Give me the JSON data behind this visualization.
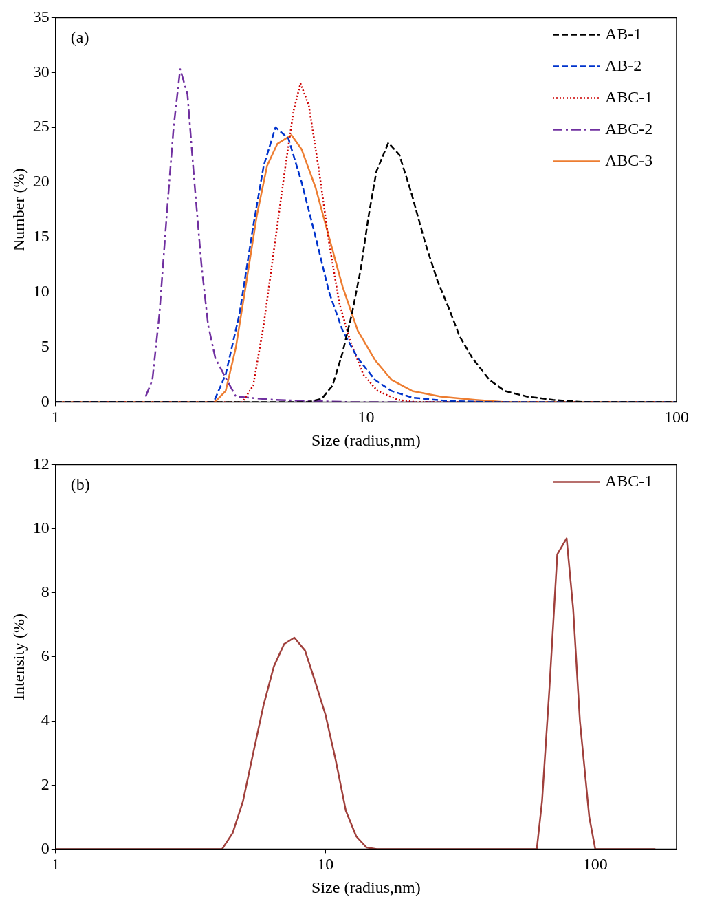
{
  "chart_data": [
    {
      "type": "line",
      "xlabel": "Size (radius,nm)",
      "ylabel": "Number (%)",
      "log": "x",
      "xlim": [
        1,
        100
      ],
      "xticks": [
        1,
        10,
        100
      ],
      "ylim": [
        0,
        35
      ],
      "yticks": [
        0,
        5,
        10,
        15,
        20,
        25,
        30,
        35
      ],
      "grid": false,
      "legend": "top right",
      "marker": "none",
      "annotations": [
        "(a)"
      ],
      "series": [
        {
          "name": "AB-1",
          "color": "#000000",
          "line_style": "dashed",
          "x": [
            1,
            3,
            6.5,
            7.2,
            7.8,
            8.4,
            9.0,
            9.6,
            10.2,
            10.8,
            11.8,
            12.8,
            14,
            15.5,
            17,
            18.5,
            20,
            22,
            25,
            28,
            33,
            40,
            50,
            100
          ],
          "values": [
            0,
            0,
            0,
            0.3,
            1.5,
            4.5,
            8,
            12,
            17,
            21,
            23.6,
            22.5,
            19,
            14.5,
            11,
            8.5,
            6,
            4,
            2,
            1,
            0.5,
            0.2,
            0,
            0
          ]
        },
        {
          "name": "AB-2",
          "color": "#0033cc",
          "line_style": "dashed",
          "x": [
            1,
            3.23,
            3.53,
            3.91,
            4.33,
            4.68,
            5.11,
            5.62,
            6.2,
            6.88,
            7.6,
            8.4,
            9.4,
            10.7,
            12.1,
            14.1,
            18.3,
            25,
            100
          ],
          "values": [
            0,
            0,
            2.5,
            8,
            16,
            21.5,
            25,
            24,
            20,
            15,
            10,
            6.5,
            4,
            2,
            1,
            0.4,
            0.1,
            0,
            0
          ]
        },
        {
          "name": "ABC-1",
          "color": "#cc0000",
          "line_style": "dotted",
          "x": [
            1,
            4.0,
            4.33,
            4.68,
            5.06,
            5.47,
            5.84,
            6.15,
            6.54,
            7.06,
            7.6,
            8.2,
            8.9,
            9.8,
            10.9,
            12.7,
            14.5,
            100
          ],
          "values": [
            0,
            0,
            1.5,
            7,
            14,
            21,
            26.5,
            29,
            27,
            21,
            14.5,
            9,
            5.5,
            2.5,
            1,
            0.2,
            0,
            0
          ]
        },
        {
          "name": "ABC-2",
          "color": "#7030a0",
          "line_style": "dashdot",
          "x": [
            1.95,
            2.05,
            2.16,
            2.28,
            2.4,
            2.52,
            2.66,
            2.8,
            2.95,
            3.1,
            3.27,
            3.53,
            3.81,
            5.06,
            6.5,
            9,
            20
          ],
          "values": [
            0.5,
            2,
            8,
            17,
            25,
            30.3,
            28,
            20,
            12.5,
            7,
            4,
            2.2,
            0.5,
            0.2,
            0.1,
            0,
            0
          ]
        },
        {
          "name": "ABC-3",
          "color": "#ed7d31",
          "line_style": "solid",
          "x": [
            1,
            3.26,
            3.53,
            3.81,
            4.12,
            4.45,
            4.8,
            5.18,
            5.75,
            6.2,
            6.88,
            7.6,
            8.4,
            9.4,
            10.7,
            12.1,
            14.1,
            17.4,
            22.5,
            28,
            100
          ],
          "values": [
            0,
            0,
            1,
            5,
            11,
            17,
            21.5,
            23.5,
            24.3,
            23,
            19.5,
            15,
            10.5,
            6.5,
            3.8,
            2,
            1,
            0.5,
            0.2,
            0,
            0
          ]
        }
      ]
    },
    {
      "type": "line",
      "xlabel": "Size (radius,nm)",
      "ylabel": "Intensity (%)",
      "log": "x",
      "xlim": [
        1,
        200
      ],
      "xticks": [
        1,
        10,
        100
      ],
      "ylim": [
        0,
        12
      ],
      "yticks": [
        0,
        2,
        4,
        6,
        8,
        10,
        12
      ],
      "grid": false,
      "legend": "top right",
      "marker": "none",
      "annotations": [
        "(b)"
      ],
      "series": [
        {
          "name": "ABC-1",
          "color": "#a0403c",
          "line_style": "solid",
          "x": [
            1,
            3.8,
            4.14,
            4.53,
            4.95,
            5.4,
            5.9,
            6.44,
            7.03,
            7.67,
            8.4,
            9.1,
            10,
            10.9,
            11.9,
            13,
            14.2,
            15.5,
            60.7,
            63.5,
            67.6,
            72.3,
            78.3,
            82.8,
            87.7,
            95,
            100,
            167
          ],
          "values": [
            0,
            0,
            0,
            0.5,
            1.5,
            3,
            4.5,
            5.7,
            6.4,
            6.6,
            6.2,
            5.3,
            4.2,
            2.8,
            1.2,
            0.4,
            0.05,
            0,
            0,
            1.5,
            5,
            9.2,
            9.7,
            7.5,
            4,
            1,
            0,
            0
          ]
        }
      ]
    }
  ]
}
